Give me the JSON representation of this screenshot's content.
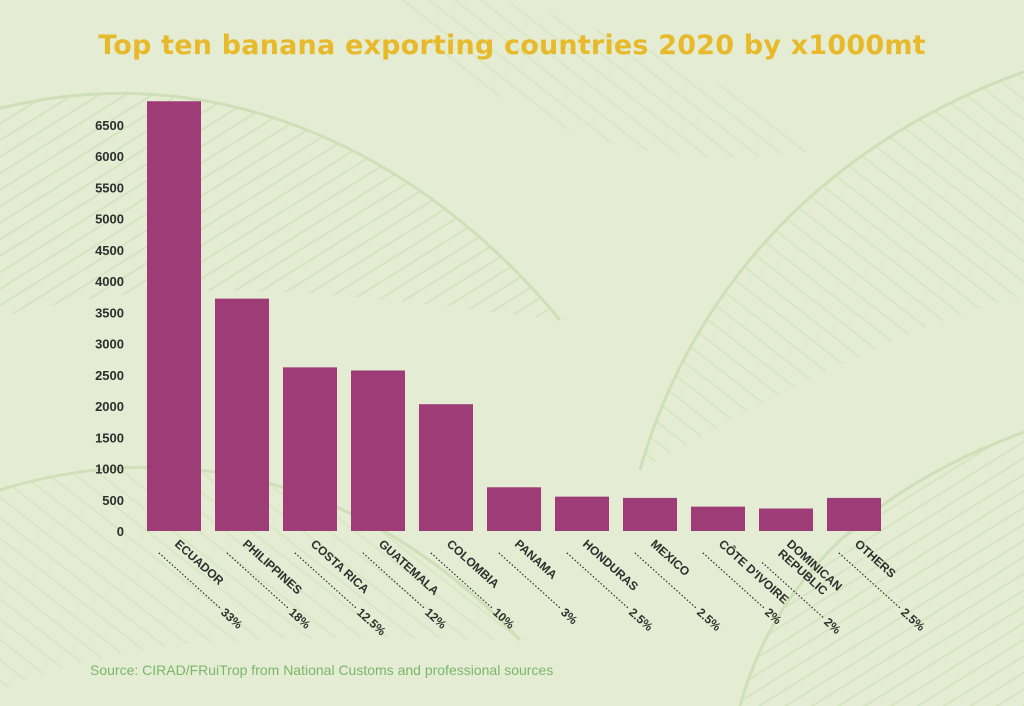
{
  "title": "Top ten banana exporting countries 2020 by x1000mt",
  "source": "Source: CIRAD/FRuiTrop from National Customs and professional sources",
  "colors": {
    "bar": "#9e3c77",
    "title": "#e8b92a",
    "source": "#7bb66a",
    "tick_text": "#2e2e2e"
  },
  "chart_data": {
    "type": "bar",
    "title": "Top ten banana exporting countries 2020 by x1000mt",
    "categories": [
      "ECUADOR",
      "PHILIPPINES",
      "COSTA RICA",
      "GUATEMALA",
      "COLOMBIA",
      "PANAMA",
      "HONDURAS",
      "MEXICO",
      "CÔTE D'IVOIRE",
      "DOMINICAN REPUBLIC",
      "OTHERS"
    ],
    "category_lines": [
      [
        "ECUADOR"
      ],
      [
        "PHILIPPINES"
      ],
      [
        "COSTA RICA"
      ],
      [
        "GUATEMALA"
      ],
      [
        "COLOMBIA"
      ],
      [
        "PANAMA"
      ],
      [
        "HONDURAS"
      ],
      [
        "MEXICO"
      ],
      [
        "CÔTE D'IVOIRE"
      ],
      [
        "DOMINICAN",
        "REPUBLIC"
      ],
      [
        "OTHERS"
      ]
    ],
    "values": [
      6880,
      3720,
      2620,
      2570,
      2030,
      700,
      550,
      530,
      390,
      360,
      530
    ],
    "shares": [
      "33%",
      "18%",
      "12.5%",
      "12%",
      "10%",
      "3%",
      "2.5%",
      "2.5%",
      "2%",
      "2%",
      "2.5%"
    ],
    "yticks": [
      0,
      500,
      1000,
      1500,
      2000,
      2500,
      3000,
      3500,
      4000,
      4500,
      5000,
      5500,
      6000,
      6500
    ],
    "ylim": [
      0,
      6900
    ],
    "xlabel": "",
    "ylabel": "",
    "grid": false,
    "legend": "none"
  }
}
